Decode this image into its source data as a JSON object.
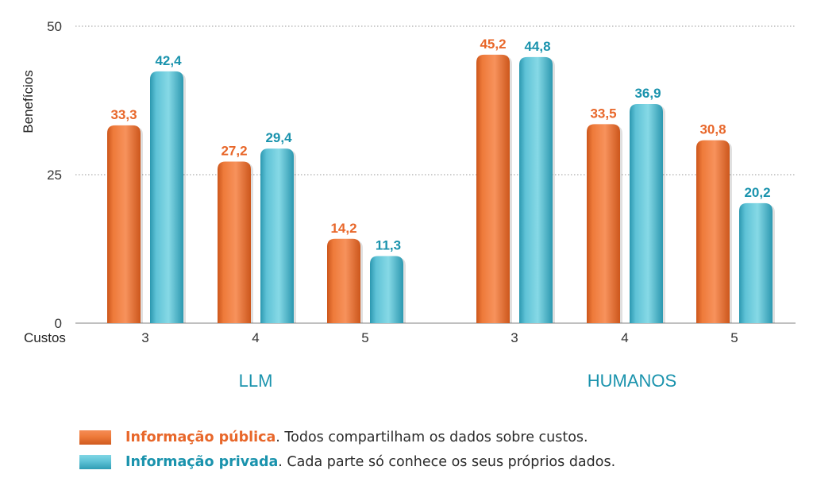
{
  "chart_data": {
    "type": "bar",
    "ylabel": "Benefícios",
    "xlabel": "Custos",
    "ylim": [
      0,
      50
    ],
    "yticks": [
      0,
      25,
      50
    ],
    "grid": true,
    "groups": [
      {
        "name": "LLM",
        "categories": [
          "3",
          "4",
          "5"
        ]
      },
      {
        "name": "HUMANOS",
        "categories": [
          "3",
          "4",
          "5"
        ]
      }
    ],
    "series": [
      {
        "name": "Informação pública",
        "color": "#ee7a3a",
        "values": [
          33.3,
          27.2,
          14.2,
          45.2,
          33.5,
          30.8
        ],
        "labels": [
          "33,3",
          "27,2",
          "14,2",
          "45,2",
          "33,5",
          "30,8"
        ]
      },
      {
        "name": "Informação privada",
        "color": "#5ec2d6",
        "values": [
          42.4,
          29.4,
          11.3,
          44.8,
          36.9,
          20.2
        ],
        "labels": [
          "42,4",
          "29,4",
          "11,3",
          "44,8",
          "36,9",
          "20,2"
        ]
      }
    ],
    "legend_position": "bottom",
    "label_colors": {
      "orange": "#e8672a",
      "teal": "#1a93ad"
    }
  },
  "legend": {
    "public_label": "Informação pública",
    "public_text": ". Todos compartilham os dados sobre custos.",
    "private_label": "Informação privada",
    "private_text": ". Cada parte só conhece os seus próprios dados."
  }
}
